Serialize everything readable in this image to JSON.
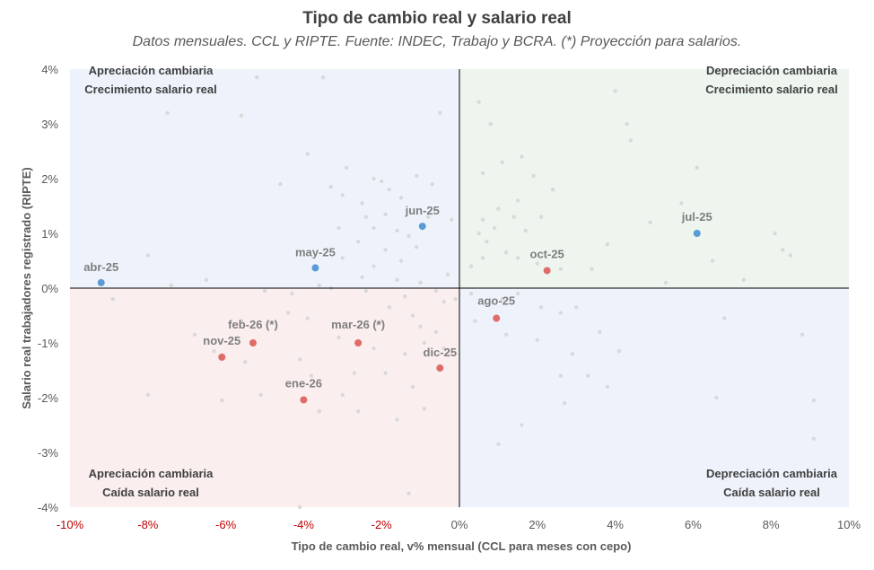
{
  "chart_data": {
    "type": "scatter",
    "title": "Tipo de cambio real y salario real",
    "subtitle": "Datos mensuales. CCL y RIPTE. Fuente: INDEC, Trabajo y BCRA. (*) Proyección para salarios.",
    "xlabel": "Tipo de cambio real, v% mensual (CCL para meses con cepo)",
    "ylabel": "Salario real trabajadores registrado (RIPTE)",
    "xlim": [
      -10,
      10
    ],
    "ylim": [
      -4,
      4
    ],
    "x_ticks": [
      "-10%",
      "-8%",
      "-6%",
      "-4%",
      "-2%",
      "0%",
      "2%",
      "4%",
      "6%",
      "8%",
      "10%"
    ],
    "y_ticks": [
      "4%",
      "3%",
      "2%",
      "1%",
      "0%",
      "-1%",
      "-2%",
      "-3%",
      "-4%"
    ],
    "quadrants": [
      {
        "name": "top-left",
        "line1": "Apreciación cambiaria",
        "line2": "Crecimiento salario real",
        "color": "#eef3fb"
      },
      {
        "name": "top-right",
        "line1": "Depreciación cambiaria",
        "line2": "Crecimiento salario real",
        "color": "#edf5ee"
      },
      {
        "name": "bottom-left",
        "line1": "Apreciación cambiaria",
        "line2": "Caída salario real",
        "color": "#fbeeee"
      },
      {
        "name": "bottom-right",
        "line1": "Depreciación cambiaria",
        "line2": "Caída salario real",
        "color": "#eef3fb"
      }
    ],
    "colors": {
      "blue": "#5b9bd5",
      "red": "#e06c68",
      "grey": "#d9d9d9",
      "axis": "#000000"
    },
    "highlighted": [
      {
        "label": "abr-25",
        "x": -9.2,
        "y": 0.1,
        "color": "blue"
      },
      {
        "label": "may-25",
        "x": -3.7,
        "y": 0.37,
        "color": "blue"
      },
      {
        "label": "jun-25",
        "x": -0.95,
        "y": 1.13,
        "color": "blue"
      },
      {
        "label": "jul-25",
        "x": 6.1,
        "y": 1.0,
        "color": "blue"
      },
      {
        "label": "ago-25",
        "x": 0.95,
        "y": -0.55,
        "color": "red"
      },
      {
        "label": "oct-25",
        "x": 2.25,
        "y": 0.32,
        "color": "red"
      },
      {
        "label": "nov-25",
        "x": -6.1,
        "y": -1.26,
        "color": "red"
      },
      {
        "label": "dic-25",
        "x": -0.5,
        "y": -1.46,
        "color": "red"
      },
      {
        "label": "ene-26",
        "x": -4.0,
        "y": -2.04,
        "color": "red"
      },
      {
        "label": "feb-26 (*)",
        "x": -5.3,
        "y": -1.0,
        "color": "red"
      },
      {
        "label": "mar-26 (*)",
        "x": -2.6,
        "y": -1.0,
        "color": "red"
      }
    ],
    "history": [
      [
        -5.2,
        3.85
      ],
      [
        -3.5,
        3.85
      ],
      [
        -7.5,
        3.2
      ],
      [
        -5.6,
        3.15
      ],
      [
        -0.5,
        3.2
      ],
      [
        -3.9,
        2.45
      ],
      [
        -2.9,
        2.2
      ],
      [
        -4.6,
        1.9
      ],
      [
        -2.2,
        2.0
      ],
      [
        -2.0,
        1.95
      ],
      [
        -1.8,
        1.8
      ],
      [
        -1.1,
        2.05
      ],
      [
        -0.7,
        1.9
      ],
      [
        -3.3,
        1.85
      ],
      [
        -3.0,
        1.7
      ],
      [
        -2.5,
        1.55
      ],
      [
        -1.5,
        1.65
      ],
      [
        -1.9,
        1.35
      ],
      [
        -2.4,
        1.3
      ],
      [
        -0.8,
        1.3
      ],
      [
        -0.2,
        1.25
      ],
      [
        -3.1,
        1.1
      ],
      [
        -2.2,
        1.1
      ],
      [
        -1.6,
        1.05
      ],
      [
        -1.3,
        0.95
      ],
      [
        -2.6,
        0.85
      ],
      [
        -1.9,
        0.7
      ],
      [
        -1.1,
        0.75
      ],
      [
        -3.0,
        0.55
      ],
      [
        -1.5,
        0.5
      ],
      [
        -2.2,
        0.4
      ],
      [
        -0.3,
        0.25
      ],
      [
        -1.0,
        0.1
      ],
      [
        -2.5,
        0.2
      ],
      [
        -1.6,
        0.15
      ],
      [
        -3.6,
        0.05
      ],
      [
        -6.5,
        0.15
      ],
      [
        -7.4,
        0.05
      ],
      [
        -5.0,
        -0.05
      ],
      [
        -4.3,
        -0.1
      ],
      [
        -3.3,
        0.0
      ],
      [
        -2.4,
        -0.05
      ],
      [
        -1.4,
        -0.15
      ],
      [
        -0.6,
        -0.05
      ],
      [
        -8.9,
        -0.2
      ],
      [
        -8.0,
        0.6
      ],
      [
        -6.8,
        -0.85
      ],
      [
        -1.8,
        -0.35
      ],
      [
        -1.2,
        -0.5
      ],
      [
        -0.4,
        -0.25
      ],
      [
        -2.1,
        -0.65
      ],
      [
        -1.0,
        -0.7
      ],
      [
        -3.1,
        -0.9
      ],
      [
        -3.9,
        -0.55
      ],
      [
        -4.4,
        -0.45
      ],
      [
        -5.6,
        -0.6
      ],
      [
        -6.3,
        -1.15
      ],
      [
        -5.5,
        -1.35
      ],
      [
        -4.1,
        -1.3
      ],
      [
        -3.8,
        -1.6
      ],
      [
        -2.2,
        -1.1
      ],
      [
        -1.4,
        -1.2
      ],
      [
        -0.9,
        -1.0
      ],
      [
        -0.6,
        -0.8
      ],
      [
        -2.7,
        -1.55
      ],
      [
        -1.9,
        -1.55
      ],
      [
        -1.2,
        -1.8
      ],
      [
        -0.9,
        -2.2
      ],
      [
        -3.0,
        -1.95
      ],
      [
        -3.6,
        -2.25
      ],
      [
        -2.6,
        -2.25
      ],
      [
        -5.1,
        -1.95
      ],
      [
        -6.1,
        -2.05
      ],
      [
        -8.0,
        -1.95
      ],
      [
        -1.3,
        -3.75
      ],
      [
        -4.1,
        -4.0
      ],
      [
        -0.1,
        -0.2
      ],
      [
        0.3,
        -0.1
      ],
      [
        0.5,
        3.4
      ],
      [
        0.8,
        3.0
      ],
      [
        1.6,
        2.4
      ],
      [
        1.1,
        2.3
      ],
      [
        0.6,
        2.1
      ],
      [
        1.9,
        2.05
      ],
      [
        2.4,
        1.8
      ],
      [
        1.5,
        1.6
      ],
      [
        1.0,
        1.45
      ],
      [
        0.6,
        1.25
      ],
      [
        0.5,
        1.0
      ],
      [
        0.9,
        1.1
      ],
      [
        1.4,
        1.3
      ],
      [
        1.7,
        1.05
      ],
      [
        0.7,
        0.85
      ],
      [
        1.2,
        0.65
      ],
      [
        0.6,
        0.55
      ],
      [
        1.5,
        0.55
      ],
      [
        2.0,
        0.45
      ],
      [
        2.6,
        0.35
      ],
      [
        3.4,
        0.35
      ],
      [
        3.8,
        0.8
      ],
      [
        2.1,
        1.3
      ],
      [
        0.3,
        0.4
      ],
      [
        4.0,
        3.6
      ],
      [
        4.3,
        3.0
      ],
      [
        4.4,
        2.7
      ],
      [
        4.9,
        1.2
      ],
      [
        5.7,
        1.55
      ],
      [
        6.1,
        2.2
      ],
      [
        6.5,
        0.5
      ],
      [
        5.3,
        0.1
      ],
      [
        7.3,
        0.15
      ],
      [
        8.1,
        1.0
      ],
      [
        8.3,
        0.7
      ],
      [
        8.5,
        0.6
      ],
      [
        1.1,
        -0.2
      ],
      [
        2.1,
        -0.35
      ],
      [
        2.6,
        -0.45
      ],
      [
        3.0,
        -0.35
      ],
      [
        1.2,
        -0.85
      ],
      [
        2.0,
        -0.95
      ],
      [
        2.9,
        -1.2
      ],
      [
        3.3,
        -1.6
      ],
      [
        3.8,
        -1.8
      ],
      [
        4.1,
        -1.15
      ],
      [
        3.6,
        -0.8
      ],
      [
        2.6,
        -1.6
      ],
      [
        2.7,
        -2.1
      ],
      [
        1.6,
        -2.5
      ],
      [
        1.0,
        -2.85
      ],
      [
        6.8,
        -0.55
      ],
      [
        6.6,
        -2.0
      ],
      [
        8.8,
        -0.85
      ],
      [
        9.1,
        -2.05
      ],
      [
        9.1,
        -2.75
      ],
      [
        1.5,
        -0.1
      ],
      [
        0.4,
        -0.6
      ],
      [
        -0.4,
        -1.1
      ],
      [
        -1.6,
        -2.4
      ]
    ]
  }
}
